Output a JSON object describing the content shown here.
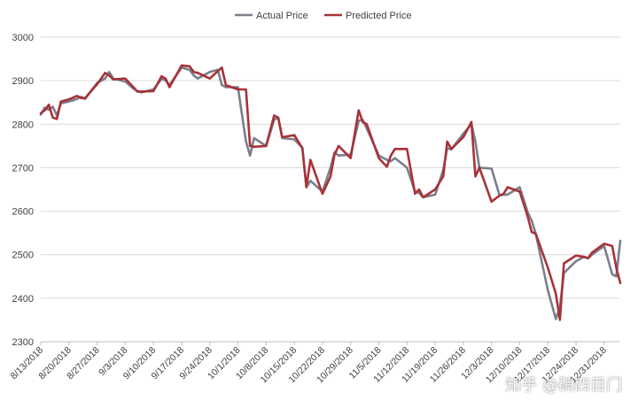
{
  "chart_data": {
    "type": "line",
    "title": "",
    "xlabel": "",
    "ylabel": "",
    "ylim": [
      2300,
      3000
    ],
    "yticks": [
      2300,
      2400,
      2500,
      2600,
      2700,
      2800,
      2900,
      3000
    ],
    "grid": "horizontal",
    "legend_position": "top-center",
    "x_tick_labels": [
      "8/13/2018",
      "8/20/2018",
      "8/27/2018",
      "9/3/2018",
      "9/10/2018",
      "9/17/2018",
      "9/24/2018",
      "10/1/2018",
      "10/8/2018",
      "10/15/2018",
      "10/22/2018",
      "10/29/2018",
      "11/5/2018",
      "11/12/2018",
      "11/19/2018",
      "11/26/2018",
      "12/3/2018",
      "12/10/2018",
      "12/17/2018",
      "12/24/2018",
      "12/31/2018"
    ],
    "x_range_days": [
      0,
      144
    ],
    "series": [
      {
        "name": "Actual Price",
        "color": "#7a7f8c",
        "x": [
          0,
          1,
          2,
          3,
          4,
          5,
          7,
          9,
          10,
          11,
          14,
          16,
          17,
          18,
          21,
          23,
          24,
          25,
          28,
          30,
          31,
          32,
          35,
          37,
          38,
          39,
          42,
          44,
          45,
          46,
          49,
          51,
          52,
          53,
          56,
          58,
          59,
          60,
          63,
          65,
          66,
          67,
          70,
          72,
          73,
          74,
          77,
          79,
          80,
          81,
          84,
          86,
          87,
          88,
          91,
          93,
          94,
          95,
          98,
          100,
          101,
          102,
          105,
          107,
          108,
          109,
          112,
          114,
          115,
          116,
          119,
          121,
          122,
          123,
          126,
          128,
          129,
          130,
          133,
          135,
          136,
          137,
          140,
          142,
          143,
          144
        ],
        "y": [
          2822,
          2838,
          2833,
          2840,
          2820,
          2848,
          2852,
          2858,
          2863,
          2858,
          2895,
          2905,
          2920,
          2905,
          2898,
          2882,
          2876,
          2873,
          2880,
          2904,
          2901,
          2890,
          2930,
          2925,
          2912,
          2905,
          2920,
          2925,
          2890,
          2885,
          2885,
          2760,
          2728,
          2768,
          2750,
          2810,
          2815,
          2768,
          2765,
          2746,
          2655,
          2670,
          2645,
          2700,
          2735,
          2728,
          2730,
          2808,
          2810,
          2790,
          2728,
          2718,
          2715,
          2722,
          2700,
          2645,
          2642,
          2632,
          2638,
          2695,
          2745,
          2742,
          2778,
          2800,
          2760,
          2700,
          2698,
          2636,
          2638,
          2638,
          2655,
          2598,
          2578,
          2548,
          2418,
          2352,
          2380,
          2458,
          2485,
          2495,
          2492,
          2500,
          2520,
          2455,
          2450,
          2532
        ]
      },
      {
        "name": "Predicted Price",
        "color": "#a83238",
        "x": [
          0,
          1,
          2,
          3,
          4,
          5,
          7,
          9,
          10,
          11,
          14,
          16,
          17,
          18,
          21,
          23,
          24,
          25,
          28,
          30,
          31,
          32,
          35,
          37,
          38,
          39,
          42,
          44,
          45,
          46,
          49,
          51,
          52,
          53,
          56,
          58,
          59,
          60,
          63,
          65,
          66,
          67,
          70,
          72,
          73,
          74,
          77,
          79,
          80,
          81,
          84,
          86,
          87,
          88,
          91,
          93,
          94,
          95,
          98,
          100,
          101,
          102,
          105,
          107,
          108,
          109,
          112,
          114,
          115,
          116,
          119,
          121,
          122,
          123,
          126,
          128,
          129,
          130,
          133,
          135,
          136,
          137,
          140,
          142,
          143,
          144
        ],
        "y": [
          2825,
          2832,
          2845,
          2815,
          2812,
          2852,
          2857,
          2865,
          2860,
          2860,
          2892,
          2918,
          2912,
          2903,
          2905,
          2885,
          2875,
          2875,
          2876,
          2910,
          2905,
          2885,
          2935,
          2933,
          2920,
          2918,
          2905,
          2922,
          2930,
          2890,
          2880,
          2880,
          2750,
          2748,
          2750,
          2820,
          2815,
          2770,
          2775,
          2745,
          2655,
          2718,
          2640,
          2680,
          2730,
          2750,
          2722,
          2832,
          2805,
          2800,
          2722,
          2702,
          2728,
          2743,
          2743,
          2640,
          2650,
          2632,
          2650,
          2680,
          2760,
          2743,
          2770,
          2805,
          2680,
          2700,
          2622,
          2636,
          2640,
          2655,
          2645,
          2588,
          2552,
          2548,
          2470,
          2410,
          2350,
          2480,
          2498,
          2495,
          2492,
          2505,
          2525,
          2520,
          2470,
          2435
        ]
      }
    ]
  },
  "watermark": "知乎 @硝四目门"
}
